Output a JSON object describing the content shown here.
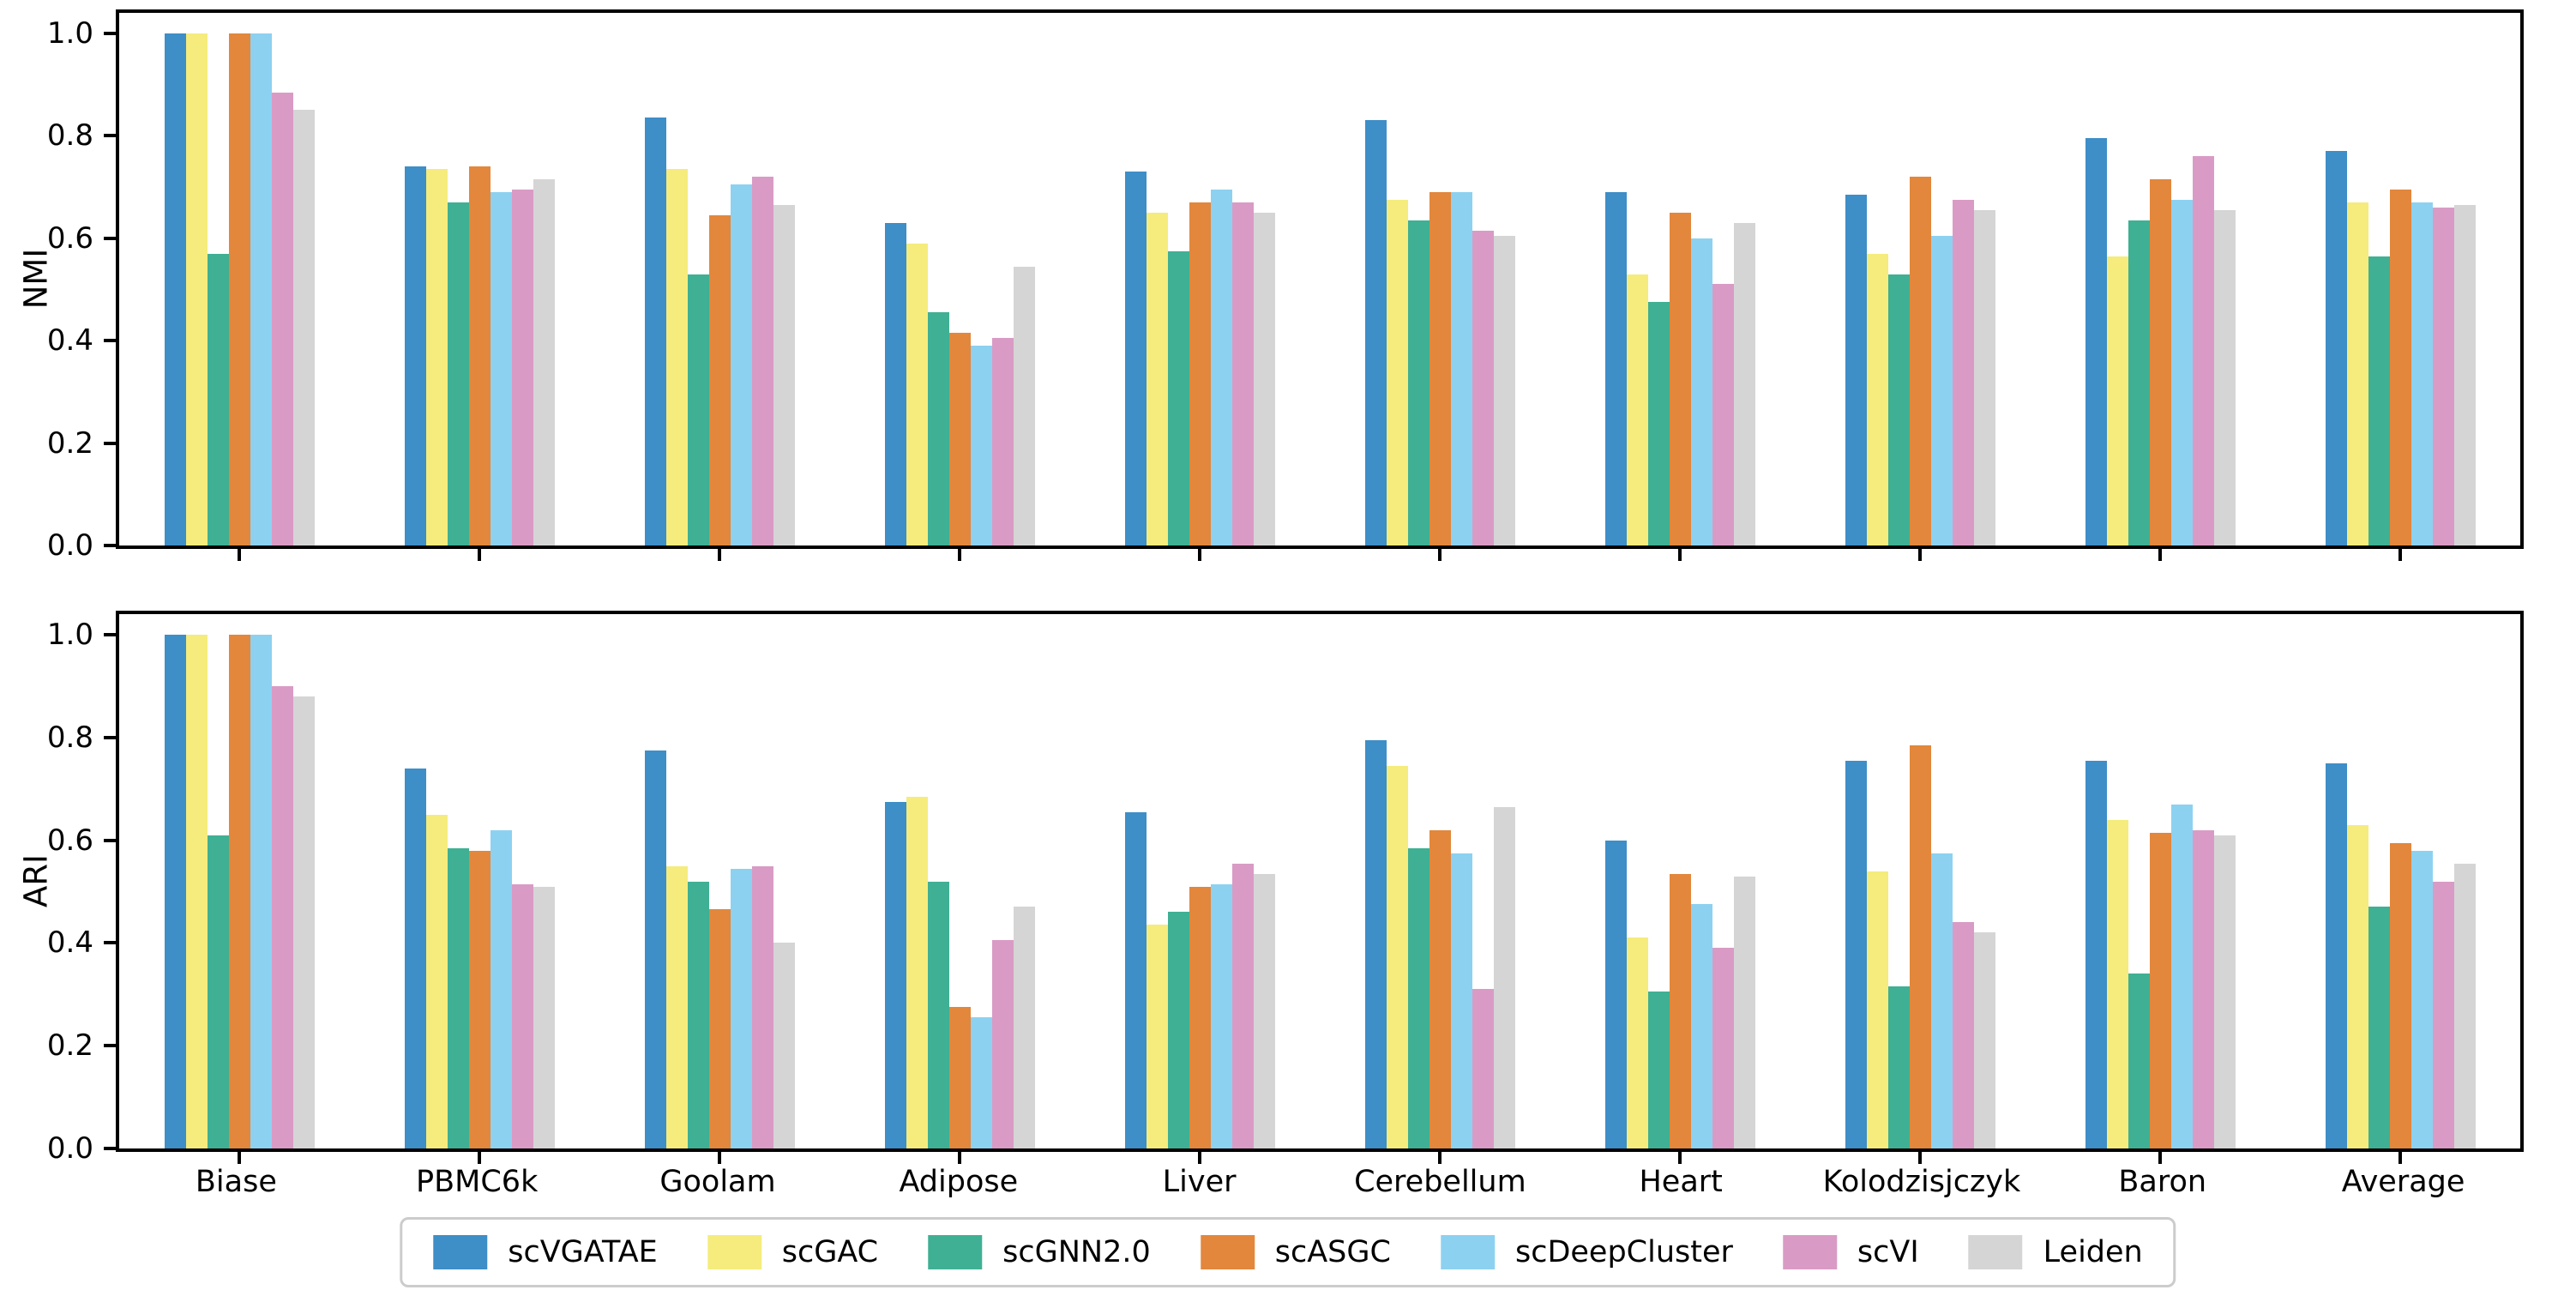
{
  "figure": {
    "background": "#ffffff",
    "axis_color": "#000000",
    "legend_border_color": "#cccccc"
  },
  "legend": {
    "position": "bottom-center",
    "orientation": "horizontal"
  },
  "chart_data": [
    {
      "type": "bar",
      "title": "",
      "xlabel": "",
      "ylabel": "NMI",
      "grid": false,
      "ylim": [
        0,
        1.04
      ],
      "yticks": [
        0,
        0.2,
        0.4,
        0.6,
        0.8,
        1.0
      ],
      "ytick_labels": [
        "0.0",
        "0.2",
        "0.4",
        "0.6",
        "0.8",
        "1.0"
      ],
      "categories": [
        "Biase",
        "PBMC6k",
        "Goolam",
        "Adipose",
        "Liver",
        "Cerebellum",
        "Heart",
        "Kolodzisjczyk",
        "Baron",
        "Average"
      ],
      "series": [
        {
          "name": "scVGATAE",
          "color": "#3e8ec7",
          "values": [
            1.0,
            0.74,
            0.835,
            0.63,
            0.73,
            0.83,
            0.69,
            0.685,
            0.795,
            0.77
          ]
        },
        {
          "name": "scGAC",
          "color": "#f5ec7d",
          "values": [
            1.0,
            0.735,
            0.735,
            0.59,
            0.65,
            0.675,
            0.53,
            0.57,
            0.565,
            0.67
          ]
        },
        {
          "name": "scGNN2.0",
          "color": "#3fb093",
          "values": [
            0.57,
            0.67,
            0.53,
            0.455,
            0.575,
            0.635,
            0.475,
            0.53,
            0.635,
            0.565
          ]
        },
        {
          "name": "scASGC",
          "color": "#e2873c",
          "values": [
            1.0,
            0.74,
            0.645,
            0.415,
            0.67,
            0.69,
            0.65,
            0.72,
            0.715,
            0.695
          ]
        },
        {
          "name": "scDeepCluster",
          "color": "#8dd1f1",
          "values": [
            1.0,
            0.69,
            0.705,
            0.39,
            0.695,
            0.69,
            0.6,
            0.605,
            0.675,
            0.67
          ]
        },
        {
          "name": "scVI",
          "color": "#d99bc5",
          "values": [
            0.885,
            0.695,
            0.72,
            0.405,
            0.67,
            0.615,
            0.51,
            0.675,
            0.76,
            0.66
          ]
        },
        {
          "name": "Leiden",
          "color": "#d5d5d5",
          "values": [
            0.85,
            0.715,
            0.665,
            0.545,
            0.65,
            0.605,
            0.63,
            0.655,
            0.655,
            0.665
          ]
        }
      ]
    },
    {
      "type": "bar",
      "title": "",
      "xlabel": "",
      "ylabel": "ARI",
      "grid": false,
      "ylim": [
        0,
        1.04
      ],
      "yticks": [
        0,
        0.2,
        0.4,
        0.6,
        0.8,
        1.0
      ],
      "ytick_labels": [
        "0.0",
        "0.2",
        "0.4",
        "0.6",
        "0.8",
        "1.0"
      ],
      "categories": [
        "Biase",
        "PBMC6k",
        "Goolam",
        "Adipose",
        "Liver",
        "Cerebellum",
        "Heart",
        "Kolodzisjczyk",
        "Baron",
        "Average"
      ],
      "series": [
        {
          "name": "scVGATAE",
          "color": "#3e8ec7",
          "values": [
            1.0,
            0.74,
            0.775,
            0.675,
            0.655,
            0.795,
            0.6,
            0.755,
            0.755,
            0.75
          ]
        },
        {
          "name": "scGAC",
          "color": "#f5ec7d",
          "values": [
            1.0,
            0.65,
            0.55,
            0.685,
            0.435,
            0.745,
            0.41,
            0.54,
            0.64,
            0.63
          ]
        },
        {
          "name": "scGNN2.0",
          "color": "#3fb093",
          "values": [
            0.61,
            0.585,
            0.52,
            0.52,
            0.46,
            0.585,
            0.305,
            0.315,
            0.34,
            0.47
          ]
        },
        {
          "name": "scASGC",
          "color": "#e2873c",
          "values": [
            1.0,
            0.58,
            0.465,
            0.275,
            0.51,
            0.62,
            0.535,
            0.785,
            0.615,
            0.595
          ]
        },
        {
          "name": "scDeepCluster",
          "color": "#8dd1f1",
          "values": [
            1.0,
            0.62,
            0.545,
            0.255,
            0.515,
            0.575,
            0.475,
            0.575,
            0.67,
            0.58
          ]
        },
        {
          "name": "scVI",
          "color": "#d99bc5",
          "values": [
            0.9,
            0.515,
            0.55,
            0.405,
            0.555,
            0.31,
            0.39,
            0.44,
            0.62,
            0.52
          ]
        },
        {
          "name": "Leiden",
          "color": "#d5d5d5",
          "values": [
            0.88,
            0.51,
            0.4,
            0.47,
            0.535,
            0.665,
            0.53,
            0.42,
            0.61,
            0.555
          ]
        }
      ]
    }
  ]
}
